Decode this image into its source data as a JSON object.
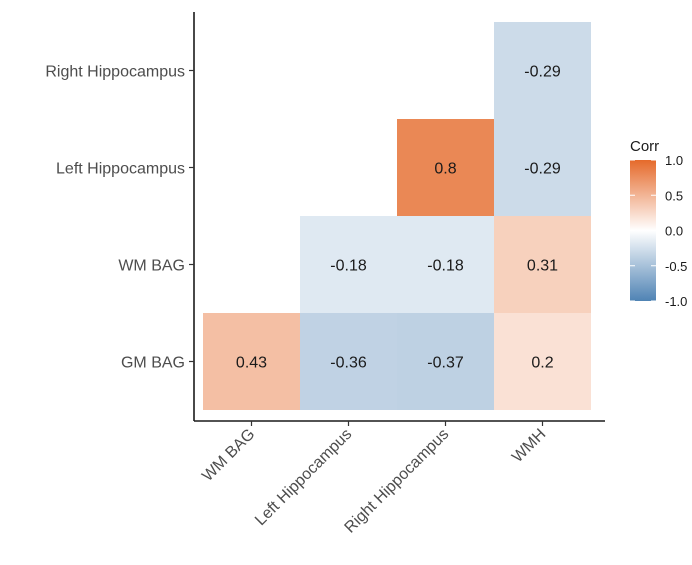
{
  "chart_data": {
    "type": "heatmap",
    "x_categories": [
      "WM BAG",
      "Left Hippocampus",
      "Right Hippocampus",
      "WMH"
    ],
    "y_categories": [
      "GM BAG",
      "WM BAG",
      "Left Hippocampus",
      "Right Hippocampus"
    ],
    "cells": [
      {
        "x": "WM BAG",
        "y": "GM BAG",
        "value": 0.43
      },
      {
        "x": "Left Hippocampus",
        "y": "GM BAG",
        "value": -0.36
      },
      {
        "x": "Right Hippocampus",
        "y": "GM BAG",
        "value": -0.37
      },
      {
        "x": "WMH",
        "y": "GM BAG",
        "value": 0.2
      },
      {
        "x": "Left Hippocampus",
        "y": "WM BAG",
        "value": -0.18
      },
      {
        "x": "Right Hippocampus",
        "y": "WM BAG",
        "value": -0.18
      },
      {
        "x": "WMH",
        "y": "WM BAG",
        "value": 0.31
      },
      {
        "x": "Right Hippocampus",
        "y": "Left Hippocampus",
        "value": 0.8
      },
      {
        "x": "WMH",
        "y": "Left Hippocampus",
        "value": -0.29
      },
      {
        "x": "WMH",
        "y": "Right Hippocampus",
        "value": -0.29
      }
    ],
    "title": "",
    "xlabel": "",
    "ylabel": "",
    "legend": {
      "title": "Corr",
      "ticks": [
        1.0,
        0.5,
        0.0,
        -0.5,
        -1.0
      ],
      "tick_labels": [
        "1.0",
        "0.5",
        "0.0",
        "-0.5",
        "-1.0"
      ],
      "placement": "right",
      "low_color": "#4f83b4",
      "mid_color": "#ffffff",
      "high_color": "#e56a2b"
    },
    "value_range": [
      -1.0,
      1.0
    ],
    "x_label_rotation_deg": -45,
    "grid": false
  }
}
